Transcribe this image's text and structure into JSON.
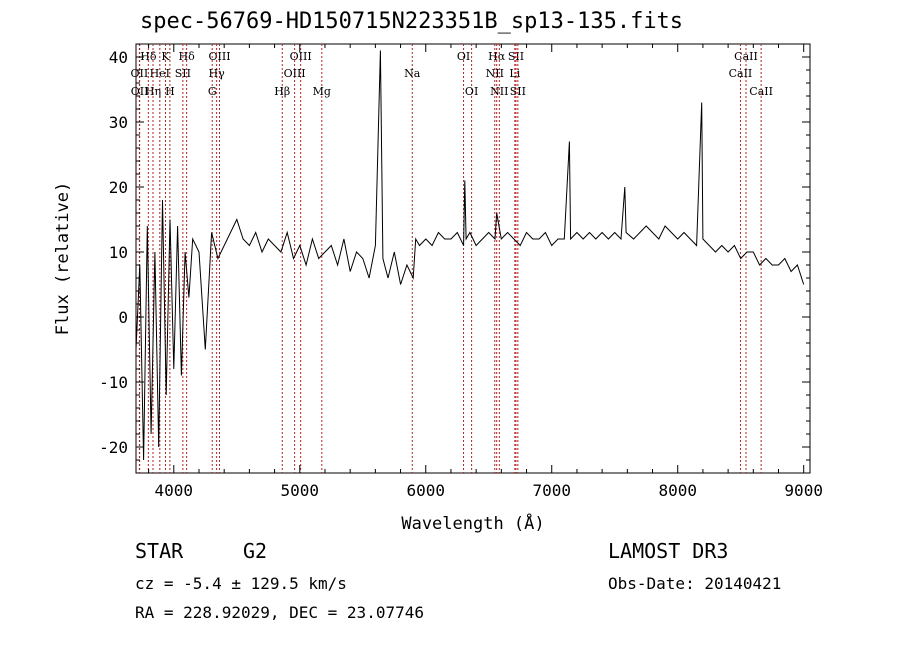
{
  "chart_data": {
    "type": "line",
    "title": "spec-56769-HD150715N223351B_sp13-135.fits",
    "xlabel": "Wavelength (Å)",
    "ylabel": "Flux (relative)",
    "xlim": [
      3700,
      9050
    ],
    "ylim": [
      -24,
      42
    ],
    "xticks": [
      4000,
      5000,
      6000,
      7000,
      8000,
      9000
    ],
    "yticks": [
      -20,
      -10,
      0,
      10,
      20,
      30,
      40
    ],
    "grid": false,
    "series": [
      {
        "name": "spectrum",
        "x": [
          3700,
          3730,
          3760,
          3790,
          3820,
          3850,
          3880,
          3910,
          3940,
          3970,
          4000,
          4030,
          4060,
          4090,
          4120,
          4150,
          4200,
          4250,
          4300,
          4350,
          4400,
          4450,
          4500,
          4550,
          4600,
          4650,
          4700,
          4750,
          4800,
          4850,
          4900,
          4950,
          5000,
          5050,
          5100,
          5150,
          5200,
          5250,
          5300,
          5350,
          5400,
          5450,
          5500,
          5550,
          5600,
          5640,
          5660,
          5700,
          5750,
          5800,
          5850,
          5900,
          5920,
          5950,
          6000,
          6050,
          6100,
          6150,
          6200,
          6250,
          6300,
          6310,
          6320,
          6350,
          6400,
          6450,
          6500,
          6550,
          6563,
          6600,
          6650,
          6700,
          6750,
          6800,
          6850,
          6900,
          6950,
          7000,
          7050,
          7100,
          7140,
          7150,
          7200,
          7250,
          7300,
          7350,
          7400,
          7450,
          7500,
          7550,
          7580,
          7590,
          7650,
          7700,
          7750,
          7800,
          7850,
          7900,
          7950,
          8000,
          8050,
          8100,
          8150,
          8190,
          8200,
          8250,
          8300,
          8350,
          8400,
          8450,
          8500,
          8550,
          8600,
          8650,
          8700,
          8750,
          8800,
          8850,
          8900,
          8950,
          9000
        ],
        "values": [
          -5,
          8,
          -22,
          14,
          -18,
          10,
          -20,
          18,
          -12,
          15,
          -8,
          14,
          -9,
          10,
          3,
          12,
          10,
          -5,
          13,
          9,
          11,
          13,
          15,
          12,
          11,
          13,
          10,
          12,
          11,
          10,
          13,
          9,
          11,
          8,
          12,
          9,
          10,
          11,
          8,
          12,
          7,
          10,
          9,
          6,
          11,
          41,
          9,
          6,
          10,
          5,
          8,
          6,
          12,
          11,
          12,
          11,
          13,
          12,
          12,
          13,
          11,
          21,
          12,
          13,
          11,
          12,
          13,
          12,
          16,
          12,
          13,
          12,
          11,
          13,
          12,
          12,
          13,
          11,
          12,
          12,
          27,
          12,
          13,
          12,
          13,
          12,
          13,
          12,
          13,
          12,
          20,
          13,
          12,
          13,
          14,
          13,
          12,
          14,
          13,
          12,
          13,
          12,
          11,
          33,
          12,
          11,
          10,
          11,
          10,
          11,
          9,
          10,
          10,
          8,
          9,
          8,
          8,
          9,
          7,
          8,
          5
        ]
      }
    ],
    "lines": [
      {
        "label": "Hδ",
        "wave": 3798,
        "row": 1
      },
      {
        "label": "OII",
        "wave": 3727,
        "row": 2
      },
      {
        "label": "OII",
        "wave": 3729,
        "row": 3
      },
      {
        "label": "K",
        "wave": 3934,
        "row": 1
      },
      {
        "label": "HeI",
        "wave": 3889,
        "row": 2
      },
      {
        "label": "Hη",
        "wave": 3835,
        "row": 3
      },
      {
        "label": "Hδ",
        "wave": 4102,
        "row": 1
      },
      {
        "label": "SII",
        "wave": 4072,
        "row": 2
      },
      {
        "label": "H",
        "wave": 3969,
        "row": 3
      },
      {
        "label": "OIII",
        "wave": 4363,
        "row": 1
      },
      {
        "label": "Hγ",
        "wave": 4340,
        "row": 2
      },
      {
        "label": "G",
        "wave": 4305,
        "row": 3
      },
      {
        "label": "OIII",
        "wave": 5007,
        "row": 1
      },
      {
        "label": "OIII",
        "wave": 4959,
        "row": 2
      },
      {
        "label": "Hβ",
        "wave": 4861,
        "row": 3
      },
      {
        "label": "Mg",
        "wave": 5175,
        "row": 3
      },
      {
        "label": "Na",
        "wave": 5893,
        "row": 2
      },
      {
        "label": "OI",
        "wave": 6300,
        "row": 1
      },
      {
        "label": "OI",
        "wave": 6364,
        "row": 3
      },
      {
        "label": "Hα",
        "wave": 6563,
        "row": 1
      },
      {
        "label": "NII",
        "wave": 6548,
        "row": 2
      },
      {
        "label": "NII",
        "wave": 6584,
        "row": 3
      },
      {
        "label": "SII",
        "wave": 6716,
        "row": 1
      },
      {
        "label": "Li",
        "wave": 6707,
        "row": 2
      },
      {
        "label": "SII",
        "wave": 6731,
        "row": 3
      },
      {
        "label": "CaII",
        "wave": 8542,
        "row": 1
      },
      {
        "label": "CaII",
        "wave": 8498,
        "row": 2
      },
      {
        "label": "CaII",
        "wave": 8662,
        "row": 3
      }
    ]
  },
  "info": {
    "class": "STAR",
    "subclass": "G2",
    "survey": "LAMOST DR3",
    "redshift": "cz = -5.4 ± 129.5 km/s",
    "obs_date": "Obs-Date: 20140421",
    "coords": "RA = 228.92029, DEC =  23.07746"
  },
  "colors": {
    "spectrum": "#000000",
    "marker_lines": "#b22222",
    "axes": "#000000"
  }
}
